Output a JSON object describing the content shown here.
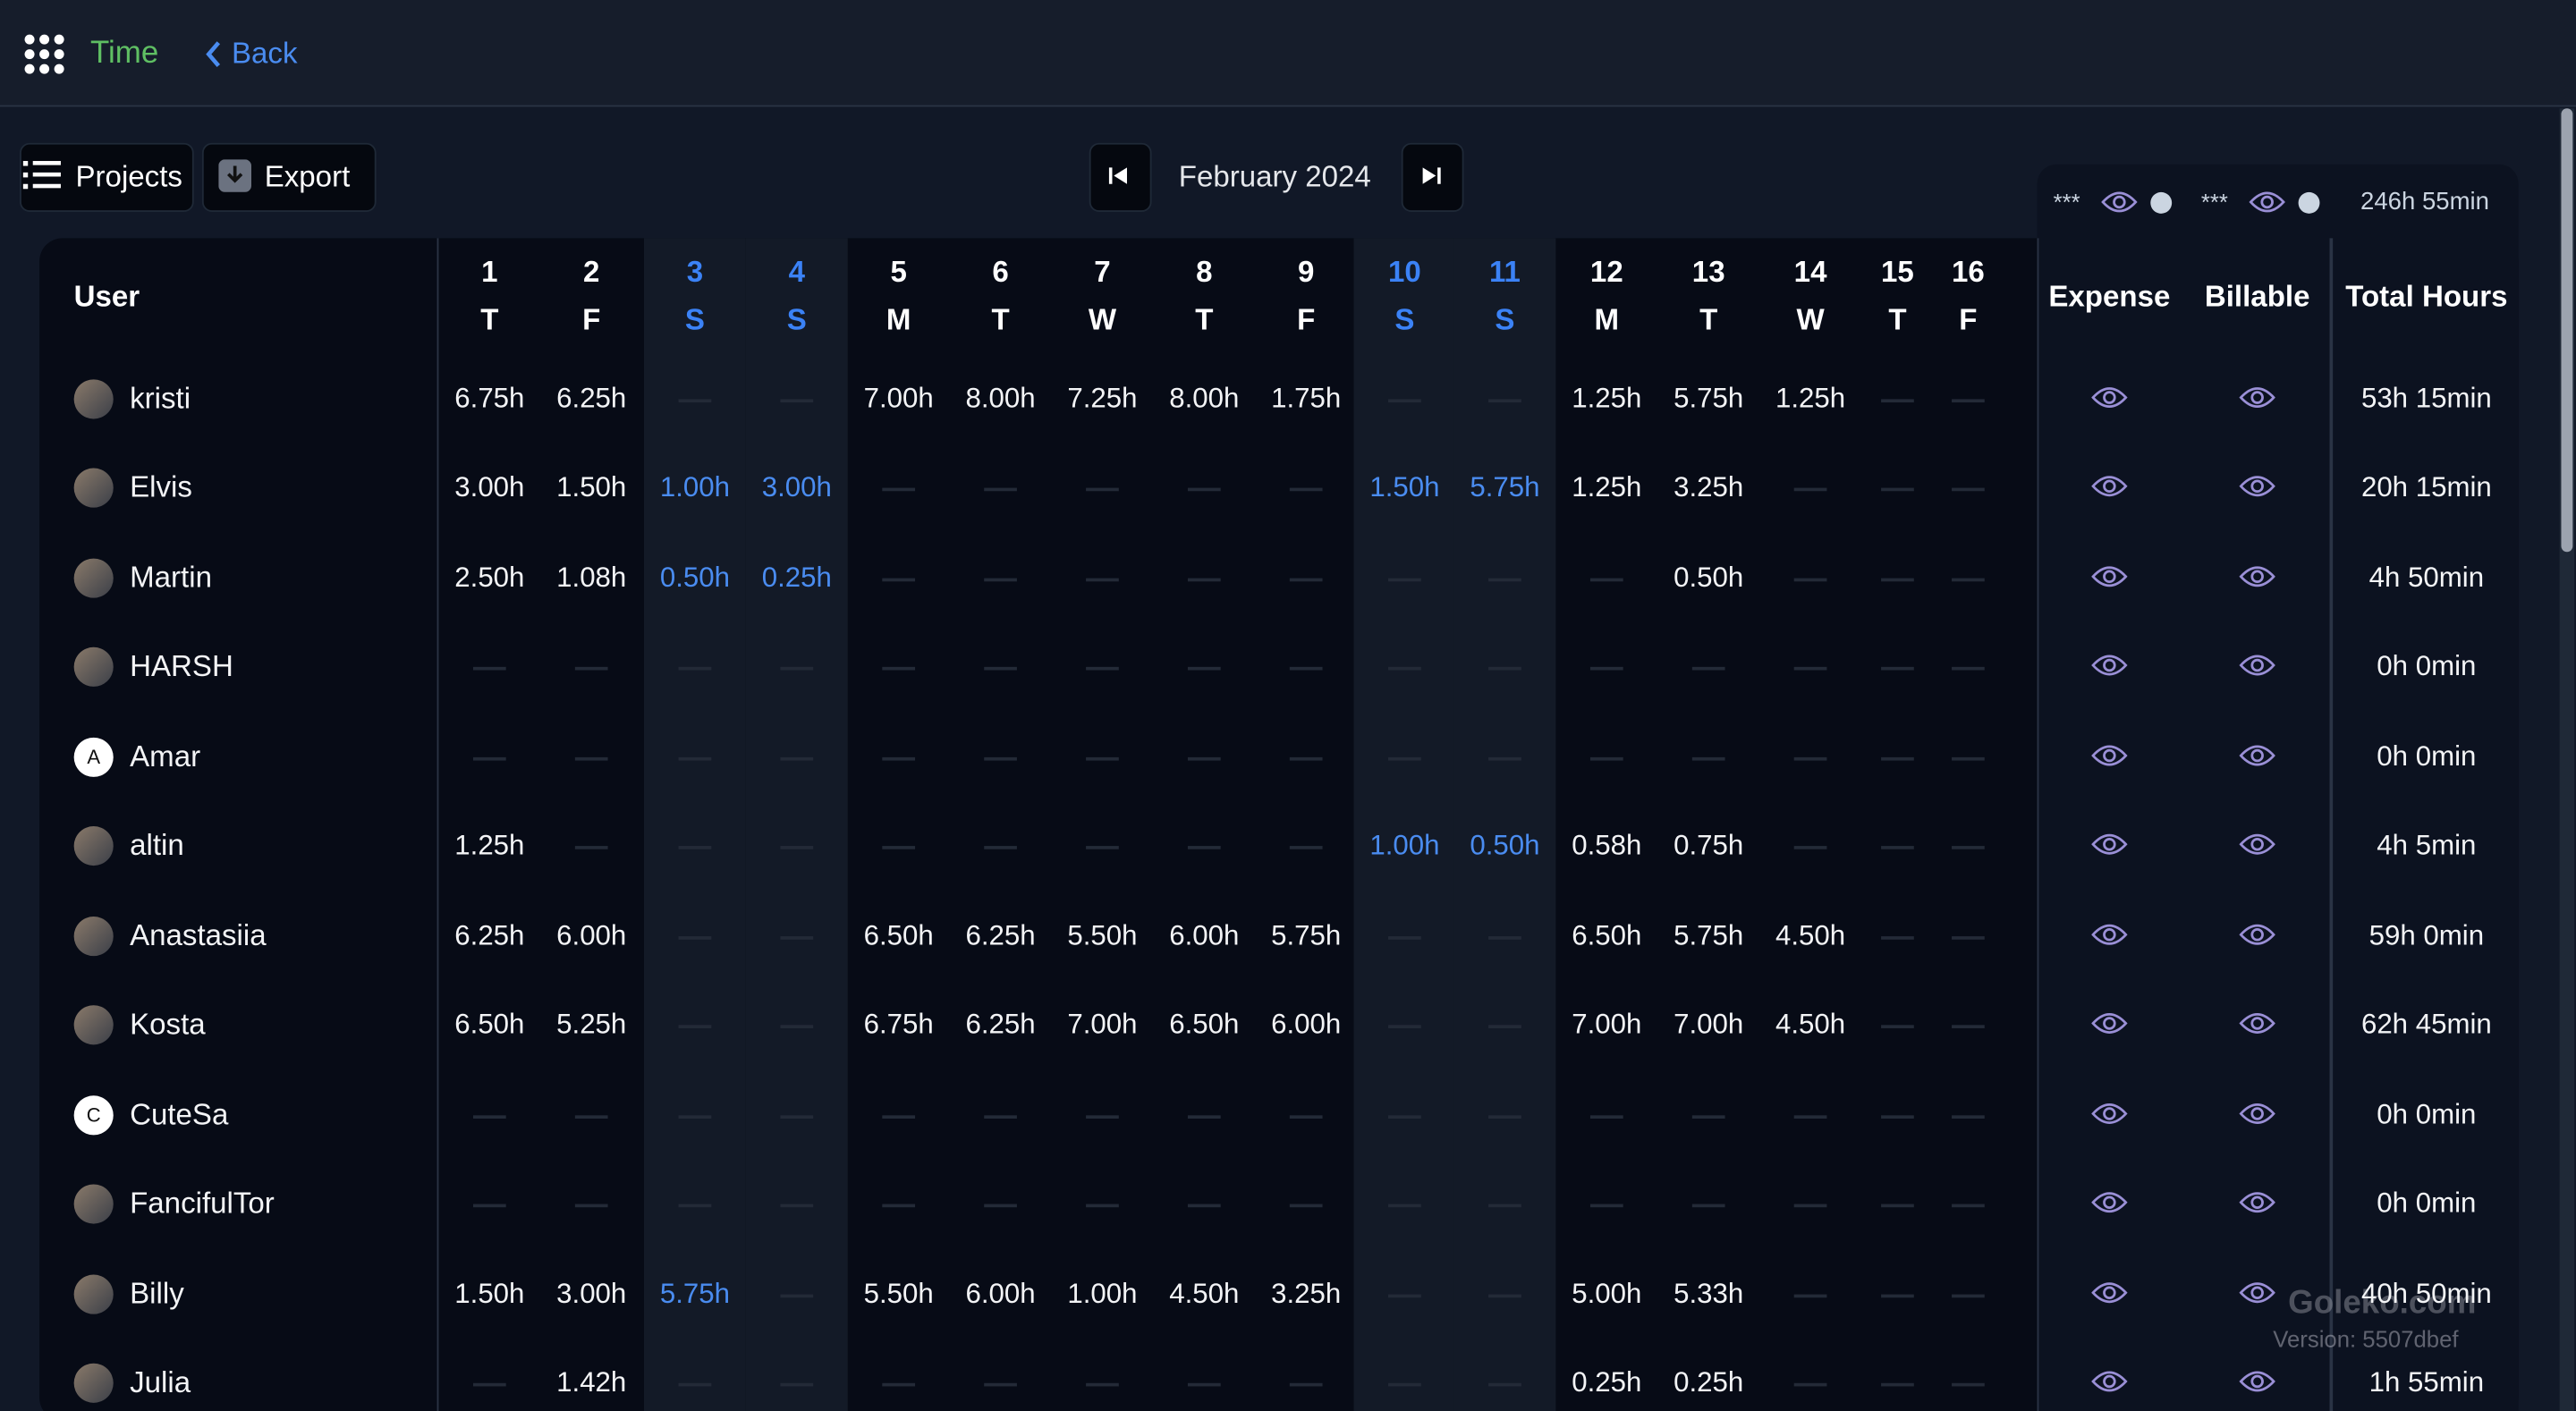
{
  "header": {
    "app": "Time",
    "back": "Back"
  },
  "toolbar": {
    "projects": "Projects",
    "export": "Export",
    "month": "February 2024"
  },
  "summary": {
    "mask1": "***",
    "mask2": "***",
    "total": "246h 55min"
  },
  "table": {
    "user_header": "User",
    "expense_header": "Expense",
    "billable_header": "Billable",
    "total_header": "Total Hours",
    "days": [
      {
        "num": "1",
        "wd": "T",
        "weekend": false
      },
      {
        "num": "2",
        "wd": "F",
        "weekend": false
      },
      {
        "num": "3",
        "wd": "S",
        "weekend": true
      },
      {
        "num": "4",
        "wd": "S",
        "weekend": true
      },
      {
        "num": "5",
        "wd": "M",
        "weekend": false
      },
      {
        "num": "6",
        "wd": "T",
        "weekend": false
      },
      {
        "num": "7",
        "wd": "W",
        "weekend": false
      },
      {
        "num": "8",
        "wd": "T",
        "weekend": false
      },
      {
        "num": "9",
        "wd": "F",
        "weekend": false
      },
      {
        "num": "10",
        "wd": "S",
        "weekend": true
      },
      {
        "num": "11",
        "wd": "S",
        "weekend": true
      },
      {
        "num": "12",
        "wd": "M",
        "weekend": false
      },
      {
        "num": "13",
        "wd": "T",
        "weekend": false
      },
      {
        "num": "14",
        "wd": "W",
        "weekend": false
      },
      {
        "num": "15",
        "wd": "T",
        "weekend": false
      },
      {
        "num": "16",
        "wd": "F",
        "weekend": false
      }
    ],
    "rows": [
      {
        "name": "kristi",
        "initial": null,
        "cells": [
          "6.75h",
          "6.25h",
          null,
          null,
          "7.00h",
          "8.00h",
          "7.25h",
          "8.00h",
          "1.75h",
          null,
          null,
          "1.25h",
          "5.75h",
          "1.25h",
          null,
          null
        ],
        "total": "53h 15min"
      },
      {
        "name": "Elvis",
        "initial": null,
        "cells": [
          "3.00h",
          "1.50h",
          "1.00h",
          "3.00h",
          null,
          null,
          null,
          null,
          null,
          "1.50h",
          "5.75h",
          "1.25h",
          "3.25h",
          null,
          null,
          null
        ],
        "total": "20h 15min"
      },
      {
        "name": "Martin",
        "initial": null,
        "cells": [
          "2.50h",
          "1.08h",
          "0.50h",
          "0.25h",
          null,
          null,
          null,
          null,
          null,
          null,
          null,
          null,
          "0.50h",
          null,
          null,
          null
        ],
        "total": "4h 50min"
      },
      {
        "name": "HARSH",
        "initial": null,
        "cells": [
          null,
          null,
          null,
          null,
          null,
          null,
          null,
          null,
          null,
          null,
          null,
          null,
          null,
          null,
          null,
          null
        ],
        "total": "0h 0min"
      },
      {
        "name": "Amar",
        "initial": "A",
        "cells": [
          null,
          null,
          null,
          null,
          null,
          null,
          null,
          null,
          null,
          null,
          null,
          null,
          null,
          null,
          null,
          null
        ],
        "total": "0h 0min"
      },
      {
        "name": "altin",
        "initial": null,
        "cells": [
          "1.25h",
          null,
          null,
          null,
          null,
          null,
          null,
          null,
          null,
          "1.00h",
          "0.50h",
          "0.58h",
          "0.75h",
          null,
          null,
          null
        ],
        "total": "4h 5min"
      },
      {
        "name": "Anastasiia",
        "initial": null,
        "cells": [
          "6.25h",
          "6.00h",
          null,
          null,
          "6.50h",
          "6.25h",
          "5.50h",
          "6.00h",
          "5.75h",
          null,
          null,
          "6.50h",
          "5.75h",
          "4.50h",
          null,
          null
        ],
        "total": "59h 0min"
      },
      {
        "name": "Kosta",
        "initial": null,
        "cells": [
          "6.50h",
          "5.25h",
          null,
          null,
          "6.75h",
          "6.25h",
          "7.00h",
          "6.50h",
          "6.00h",
          null,
          null,
          "7.00h",
          "7.00h",
          "4.50h",
          null,
          null
        ],
        "total": "62h 45min"
      },
      {
        "name": "CuteSa",
        "initial": "C",
        "cells": [
          null,
          null,
          null,
          null,
          null,
          null,
          null,
          null,
          null,
          null,
          null,
          null,
          null,
          null,
          null,
          null
        ],
        "total": "0h 0min"
      },
      {
        "name": "FancifulTor",
        "initial": null,
        "cells": [
          null,
          null,
          null,
          null,
          null,
          null,
          null,
          null,
          null,
          null,
          null,
          null,
          null,
          null,
          null,
          null
        ],
        "total": "0h 0min"
      },
      {
        "name": "Billy",
        "initial": null,
        "cells": [
          "1.50h",
          "3.00h",
          "5.75h",
          null,
          "5.50h",
          "6.00h",
          "1.00h",
          "4.50h",
          "3.25h",
          null,
          null,
          "5.00h",
          "5.33h",
          null,
          null,
          null
        ],
        "total": "40h 50min"
      },
      {
        "name": "Julia",
        "initial": null,
        "cells": [
          null,
          "1.42h",
          null,
          null,
          null,
          null,
          null,
          null,
          null,
          null,
          null,
          "0.25h",
          "0.25h",
          null,
          null,
          null
        ],
        "total": "1h 55min"
      }
    ]
  },
  "watermark": {
    "brand": "Goleko.com",
    "version": "Version: 5507dbef"
  }
}
